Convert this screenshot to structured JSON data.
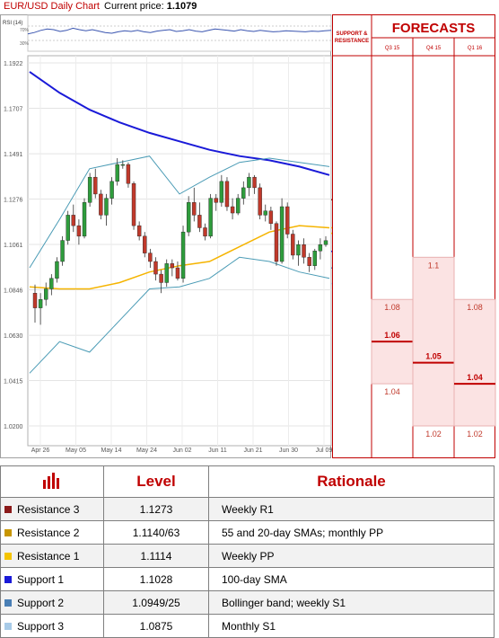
{
  "header": {
    "chart_title": "EUR/USD Daily Chart",
    "price_label": "Current price:",
    "price_value": "1.1079"
  },
  "colors": {
    "red": "#c00000",
    "sma100": "#1a1ad8",
    "sma55": "#f5b400",
    "bollinger": "#4a9bb5",
    "up": "#2e9c3c",
    "down": "#c0392b"
  },
  "chart_data": [
    {
      "type": "candlestick",
      "title": "EUR/USD Daily Chart",
      "ylim": [
        1.02,
        1.1922
      ],
      "ytick_labels": [
        "1.1922",
        "1.1707",
        "1.1491",
        "1.1276",
        "1.1061",
        "1.0846",
        "1.0630",
        "1.0415",
        "1.0200"
      ],
      "xtick_labels": [
        "Apr 26",
        "May 05",
        "May 14",
        "May 24",
        "Jun 02",
        "Jun 11",
        "Jun 21",
        "Jun 30",
        "Jul 09"
      ],
      "candles": [
        [
          1.083,
          1.087,
          1.069,
          1.076
        ],
        [
          1.076,
          1.083,
          1.068,
          1.08
        ],
        [
          1.08,
          1.088,
          1.077,
          1.085
        ],
        [
          1.085,
          1.092,
          1.082,
          1.09
        ],
        [
          1.09,
          1.1,
          1.088,
          1.098
        ],
        [
          1.098,
          1.11,
          1.096,
          1.108
        ],
        [
          1.108,
          1.122,
          1.106,
          1.12
        ],
        [
          1.12,
          1.125,
          1.112,
          1.115
        ],
        [
          1.115,
          1.118,
          1.106,
          1.11
        ],
        [
          1.11,
          1.128,
          1.109,
          1.126
        ],
        [
          1.126,
          1.14,
          1.124,
          1.138
        ],
        [
          1.138,
          1.142,
          1.128,
          1.13
        ],
        [
          1.13,
          1.132,
          1.118,
          1.12
        ],
        [
          1.12,
          1.13,
          1.115,
          1.128
        ],
        [
          1.128,
          1.138,
          1.125,
          1.136
        ],
        [
          1.136,
          1.147,
          1.134,
          1.144
        ],
        [
          1.144,
          1.146,
          1.142,
          1.144
        ],
        [
          1.144,
          1.145,
          1.133,
          1.135
        ],
        [
          1.135,
          1.136,
          1.113,
          1.115
        ],
        [
          1.115,
          1.117,
          1.108,
          1.11
        ],
        [
          1.11,
          1.112,
          1.1,
          1.102
        ],
        [
          1.102,
          1.104,
          1.095,
          1.098
        ],
        [
          1.098,
          1.1,
          1.089,
          1.092
        ],
        [
          1.092,
          1.094,
          1.083,
          1.088
        ],
        [
          1.088,
          1.099,
          1.086,
          1.097
        ],
        [
          1.097,
          1.099,
          1.091,
          1.095
        ],
        [
          1.095,
          1.098,
          1.089,
          1.09
        ],
        [
          1.09,
          1.115,
          1.088,
          1.112
        ],
        [
          1.112,
          1.129,
          1.11,
          1.126
        ],
        [
          1.126,
          1.133,
          1.117,
          1.12
        ],
        [
          1.12,
          1.126,
          1.112,
          1.114
        ],
        [
          1.114,
          1.116,
          1.108,
          1.11
        ],
        [
          1.11,
          1.13,
          1.109,
          1.128
        ],
        [
          1.128,
          1.13,
          1.122,
          1.126
        ],
        [
          1.126,
          1.139,
          1.124,
          1.136
        ],
        [
          1.136,
          1.138,
          1.122,
          1.124
        ],
        [
          1.124,
          1.128,
          1.118,
          1.121
        ],
        [
          1.121,
          1.13,
          1.12,
          1.128
        ],
        [
          1.128,
          1.136,
          1.125,
          1.133
        ],
        [
          1.133,
          1.14,
          1.129,
          1.138
        ],
        [
          1.138,
          1.139,
          1.13,
          1.133
        ],
        [
          1.133,
          1.135,
          1.118,
          1.12
        ],
        [
          1.12,
          1.125,
          1.117,
          1.122
        ],
        [
          1.122,
          1.124,
          1.113,
          1.116
        ],
        [
          1.116,
          1.117,
          1.096,
          1.098
        ],
        [
          1.098,
          1.128,
          1.097,
          1.124
        ],
        [
          1.124,
          1.126,
          1.109,
          1.111
        ],
        [
          1.111,
          1.113,
          1.099,
          1.101
        ],
        [
          1.101,
          1.108,
          1.096,
          1.106
        ],
        [
          1.106,
          1.109,
          1.097,
          1.1
        ],
        [
          1.1,
          1.102,
          1.093,
          1.096
        ],
        [
          1.096,
          1.104,
          1.094,
          1.103
        ],
        [
          1.103,
          1.109,
          1.099,
          1.106
        ],
        [
          1.106,
          1.11,
          1.105,
          1.1079
        ]
      ],
      "lines": [
        {
          "name": "100-day SMA",
          "y": [
            1.188,
            1.178,
            1.17,
            1.164,
            1.159,
            1.155,
            1.151,
            1.148,
            1.146,
            1.143,
            1.139
          ]
        },
        {
          "name": "55-day SMA",
          "y": [
            1.086,
            1.085,
            1.085,
            1.088,
            1.093,
            1.096,
            1.098,
            1.105,
            1.112,
            1.115,
            1.114
          ]
        },
        {
          "name": "Bollinger upper",
          "y": [
            1.095,
            1.118,
            1.142,
            1.145,
            1.148,
            1.13,
            1.138,
            1.145,
            1.147,
            1.145,
            1.143
          ]
        },
        {
          "name": "Bollinger lower",
          "y": [
            1.045,
            1.06,
            1.055,
            1.07,
            1.085,
            1.086,
            1.09,
            1.1,
            1.098,
            1.093,
            1.09
          ]
        }
      ],
      "levels": [
        {
          "label": "1.1273",
          "value": 1.1273,
          "color": "#7b1a1a"
        },
        {
          "label": "1.1140",
          "value": 1.114,
          "color": "#f5c400"
        },
        {
          "label": "1.1114",
          "value": 1.1114,
          "color": "#f5c400"
        },
        {
          "label": "1.1028",
          "value": 1.1028,
          "color": "#1a1ad8"
        },
        {
          "label": "1.0949",
          "value": 1.0949,
          "color": "#4a7fb5"
        },
        {
          "label": "1.0875",
          "value": 1.0875,
          "color": "#a8cbe8"
        }
      ]
    },
    {
      "type": "line",
      "title": "RSI (14)",
      "yticks": [
        "70%",
        "30%"
      ],
      "ylim": [
        0,
        100
      ],
      "values": [
        48,
        52,
        58,
        62,
        60,
        55,
        58,
        64,
        60,
        57,
        60,
        56,
        52,
        50,
        54,
        57,
        55,
        58,
        54,
        52,
        56,
        58,
        60,
        55,
        57,
        60,
        56,
        54,
        58,
        62,
        60,
        58,
        56,
        60,
        57,
        55,
        58,
        56,
        54,
        55,
        57,
        56,
        55,
        54,
        56,
        55,
        57,
        58
      ]
    },
    {
      "type": "range",
      "title": "FORECASTS",
      "subtitle": "SUPPORT & RESISTANCE",
      "columns": [
        "Q3 15",
        "Q4 15",
        "Q1 16"
      ],
      "ylim": [
        1.02,
        1.1922
      ],
      "bars": [
        {
          "column": "Q3 15",
          "high": 1.08,
          "low": 1.04,
          "bound_labels": [
            "1.08",
            "1.04"
          ],
          "median": 1.06,
          "median_label": "1.06"
        },
        {
          "column": "Q4 15",
          "high": 1.1,
          "low": 1.02,
          "bound_labels": [
            "1.1",
            "1.02"
          ],
          "median": 1.05,
          "median_label": "1.05"
        },
        {
          "column": "Q1 16",
          "high": 1.08,
          "low": 1.02,
          "bound_labels": [
            "1.08",
            "1.02"
          ],
          "median": 1.04,
          "median_label": "1.04"
        }
      ]
    }
  ],
  "table": {
    "headers": [
      "Level",
      "Rationale"
    ],
    "rows": [
      {
        "name": "Resistance 3",
        "level": "1.1273",
        "rationale": "Weekly R1",
        "color": "#8b1a1a"
      },
      {
        "name": "Resistance 2",
        "level": "1.1140/63",
        "rationale": "55 and 20-day SMAs; monthly PP",
        "color": "#c89600"
      },
      {
        "name": "Resistance 1",
        "level": "1.1114",
        "rationale": "Weekly PP",
        "color": "#f5c400"
      },
      {
        "name": "Support 1",
        "level": "1.1028",
        "rationale": "100-day SMA",
        "color": "#1a1ad8"
      },
      {
        "name": "Support 2",
        "level": "1.0949/25",
        "rationale": "Bollinger band; weekly S1",
        "color": "#4a7fb5"
      },
      {
        "name": "Support 3",
        "level": "1.0875",
        "rationale": "Monthly S1",
        "color": "#a8cbe8"
      }
    ]
  }
}
